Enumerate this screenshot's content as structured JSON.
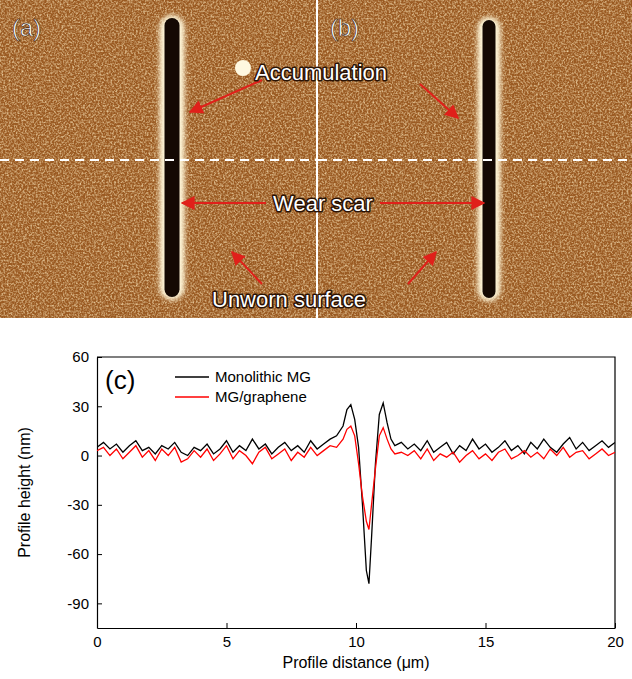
{
  "figure": {
    "panels": [
      "(a)",
      "(b)"
    ],
    "annotations": [
      "Accumulation",
      "Wear scar",
      "Unworn surface"
    ]
  },
  "chart_data": {
    "type": "line",
    "title": "(c)",
    "x_label": "Profile distance (μm)",
    "y_label": "Profile height (nm)",
    "x": [
      0,
      0.25,
      0.5,
      0.75,
      1,
      1.25,
      1.5,
      1.75,
      2,
      2.25,
      2.5,
      2.75,
      3,
      3.25,
      3.5,
      3.75,
      4,
      4.25,
      4.5,
      4.75,
      5,
      5.25,
      5.5,
      5.75,
      6,
      6.25,
      6.5,
      6.75,
      7,
      7.25,
      7.5,
      7.75,
      8,
      8.25,
      8.5,
      8.75,
      9,
      9.25,
      9.5,
      9.65,
      9.8,
      9.95,
      10.1,
      10.25,
      10.4,
      10.5,
      10.6,
      10.75,
      10.9,
      11.05,
      11.2,
      11.35,
      11.5,
      11.75,
      12,
      12.25,
      12.5,
      12.75,
      13,
      13.25,
      13.5,
      13.75,
      14,
      14.25,
      14.5,
      14.75,
      15,
      15.25,
      15.5,
      15.75,
      16,
      16.25,
      16.5,
      16.75,
      17,
      17.25,
      17.5,
      17.75,
      18,
      18.25,
      18.5,
      18.75,
      19,
      19.25,
      19.5,
      19.75,
      20
    ],
    "series": [
      {
        "name": "Monolithic MG",
        "color": "#000000",
        "values": [
          5,
          8,
          4,
          7,
          2,
          6,
          9,
          3,
          5,
          1,
          6,
          4,
          8,
          2,
          0,
          5,
          3,
          7,
          1,
          4,
          9,
          2,
          6,
          3,
          10,
          4,
          7,
          1,
          5,
          8,
          3,
          6,
          2,
          9,
          4,
          7,
          10,
          12,
          18,
          28,
          31,
          22,
          5,
          -30,
          -70,
          -78,
          -50,
          -5,
          25,
          32,
          20,
          10,
          6,
          8,
          4,
          7,
          3,
          9,
          2,
          5,
          8,
          1,
          6,
          3,
          10,
          4,
          7,
          2,
          5,
          9,
          3,
          6,
          1,
          8,
          4,
          10,
          5,
          2,
          7,
          11,
          4,
          8,
          3,
          6,
          9,
          5,
          8
        ]
      },
      {
        "name": "MG/graphene",
        "color": "#ff0000",
        "values": [
          3,
          5,
          0,
          4,
          -2,
          2,
          6,
          -1,
          3,
          -3,
          4,
          0,
          5,
          -4,
          -2,
          3,
          -1,
          4,
          -3,
          1,
          6,
          -2,
          3,
          0,
          -5,
          2,
          5,
          -2,
          1,
          4,
          -3,
          2,
          -1,
          5,
          0,
          3,
          6,
          5,
          10,
          16,
          18,
          12,
          -5,
          -25,
          -40,
          -45,
          -30,
          -8,
          12,
          17,
          10,
          4,
          1,
          2,
          0,
          3,
          -2,
          4,
          -3,
          1,
          -1,
          2,
          -4,
          0,
          3,
          -2,
          1,
          -3,
          2,
          4,
          -2,
          0,
          3,
          -1,
          2,
          -2,
          4,
          0,
          5,
          -1,
          2,
          3,
          -2,
          1,
          4,
          0,
          2
        ]
      }
    ],
    "xlim": [
      0,
      20
    ],
    "xticks": [
      0,
      5,
      10,
      15,
      20
    ],
    "ylim": [
      -105,
      60
    ],
    "yticks": [
      -90,
      -60,
      -30,
      0,
      30,
      60
    ],
    "legend": "upper left"
  }
}
